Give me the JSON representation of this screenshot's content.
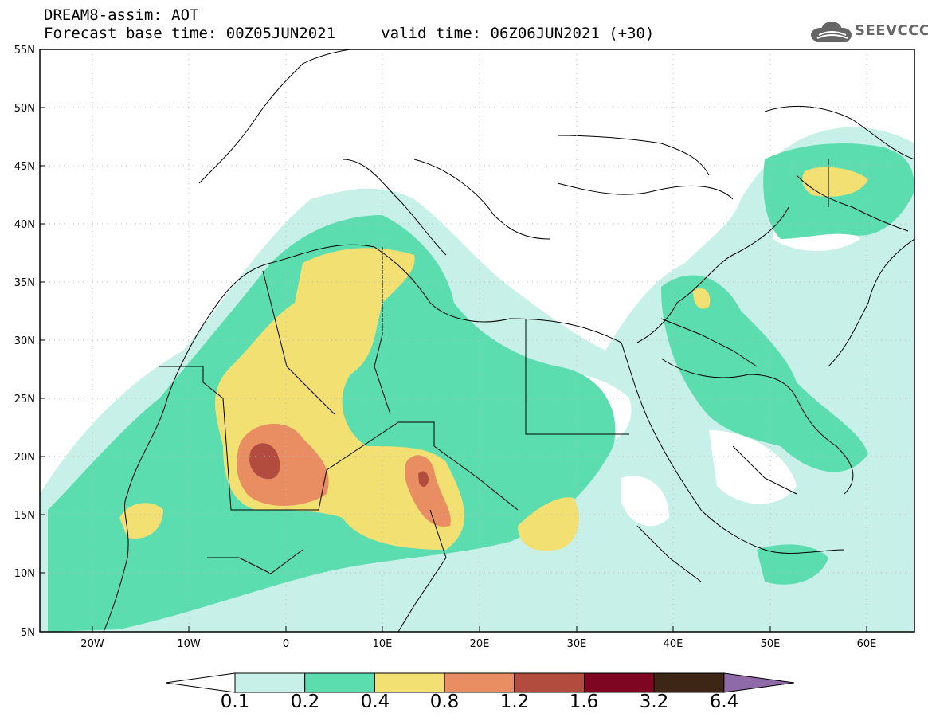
{
  "header": {
    "line1": "DREAM8-assim: AOT",
    "line2": "Forecast base time: 00Z05JUN2021     valid time: 06Z06JUN2021 (+30)"
  },
  "logo": {
    "text": "SEEVCCC",
    "icon": "cloud-icon"
  },
  "map": {
    "lon_labels": [
      "20W",
      "10W",
      "0",
      "10E",
      "20E",
      "30E",
      "40E",
      "50E",
      "60E"
    ],
    "lat_labels": [
      "55N",
      "50N",
      "45N",
      "40N",
      "35N",
      "30N",
      "25N",
      "20N",
      "15N",
      "10N",
      "5N"
    ],
    "lon_range": [
      -25,
      65
    ],
    "lat_range": [
      5,
      55
    ]
  },
  "colorbar": {
    "levels": [
      "0.1",
      "0.2",
      "0.4",
      "0.8",
      "1.2",
      "1.6",
      "3.2",
      "6.4"
    ],
    "colors": [
      "#c7f0e8",
      "#5cddb0",
      "#f2e073",
      "#e98e63",
      "#b24c3e",
      "#7e0623",
      "#3d2616",
      "#8f6aa8"
    ]
  }
}
